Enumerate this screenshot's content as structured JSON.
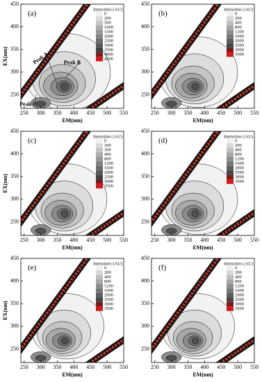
{
  "chart_data": [
    {
      "type": "contour",
      "title": "(a)",
      "xlabel": "EM(nm)",
      "ylabel": "EX(nm)",
      "legend_title": "Intensities (AU)",
      "legend_levels": [
        0,
        200,
        500,
        1000,
        1500,
        2000,
        2500,
        3000,
        3500,
        4000,
        4500
      ],
      "annotations": [
        "Peak A",
        "Peak B",
        "Peak C"
      ],
      "xlim": [
        240,
        550
      ],
      "ylim": [
        220,
        450
      ],
      "xticks": [
        250,
        300,
        350,
        400,
        450,
        500,
        550
      ],
      "yticks": [
        250,
        300,
        350,
        400,
        450
      ]
    },
    {
      "type": "contour",
      "title": "(b)",
      "xlabel": "EM(nm)",
      "legend_title": "Intensities (AU)",
      "legend_levels": [
        0,
        200,
        400,
        800,
        1200,
        1600,
        2000,
        2500,
        3000,
        3500
      ],
      "xlim": [
        240,
        550
      ],
      "ylim": [
        220,
        450
      ],
      "xticks": [
        250,
        300,
        350,
        400,
        450,
        500,
        550
      ],
      "yticks": [
        250,
        300,
        350,
        400,
        450
      ]
    },
    {
      "type": "contour",
      "title": "(c)",
      "xlabel": "EM(nm)",
      "ylabel": "EX(nm)",
      "legend_title": "Intensities (AU)",
      "legend_levels": [
        0,
        200,
        300,
        400,
        800,
        1200,
        1600,
        2000,
        2500,
        3000,
        3500
      ],
      "xlim": [
        240,
        550
      ],
      "ylim": [
        220,
        450
      ],
      "xticks": [
        250,
        300,
        350,
        400,
        450,
        500,
        550
      ],
      "yticks": [
        250,
        300,
        350,
        400,
        450
      ]
    },
    {
      "type": "contour",
      "title": "(d)",
      "xlabel": "EM(nm)",
      "legend_title": "Intensities (AU)",
      "legend_levels": [
        0,
        200,
        400,
        800,
        1200,
        1600,
        2000,
        2500,
        3000,
        3500
      ],
      "xlim": [
        240,
        550
      ],
      "ylim": [
        220,
        450
      ],
      "xticks": [
        250,
        300,
        350,
        400,
        450,
        500,
        550
      ],
      "yticks": [
        250,
        300,
        350,
        400,
        450
      ]
    },
    {
      "type": "contour",
      "title": "(e)",
      "xlabel": "EM(nm)",
      "ylabel": "EX(nm)",
      "legend_title": "Intensities (AU)",
      "legend_levels": [
        0,
        200,
        400,
        800,
        1200,
        1600,
        2000,
        2500,
        3000,
        3500
      ],
      "xlim": [
        240,
        550
      ],
      "ylim": [
        220,
        450
      ],
      "xticks": [
        250,
        300,
        350,
        400,
        450,
        500,
        550
      ],
      "yticks": [
        250,
        300,
        350,
        400,
        450
      ]
    },
    {
      "type": "contour",
      "title": "(f)",
      "xlabel": "EM(nm)",
      "legend_title": "Intensities (AU)",
      "legend_levels": [
        0,
        200,
        400,
        800,
        1200,
        1600,
        2000,
        2500,
        3000,
        3500
      ],
      "xlim": [
        240,
        550
      ],
      "ylim": [
        220,
        450
      ],
      "xticks": [
        250,
        300,
        350,
        400,
        450,
        500,
        550
      ],
      "yticks": [
        250,
        300,
        350,
        400,
        450
      ]
    }
  ]
}
